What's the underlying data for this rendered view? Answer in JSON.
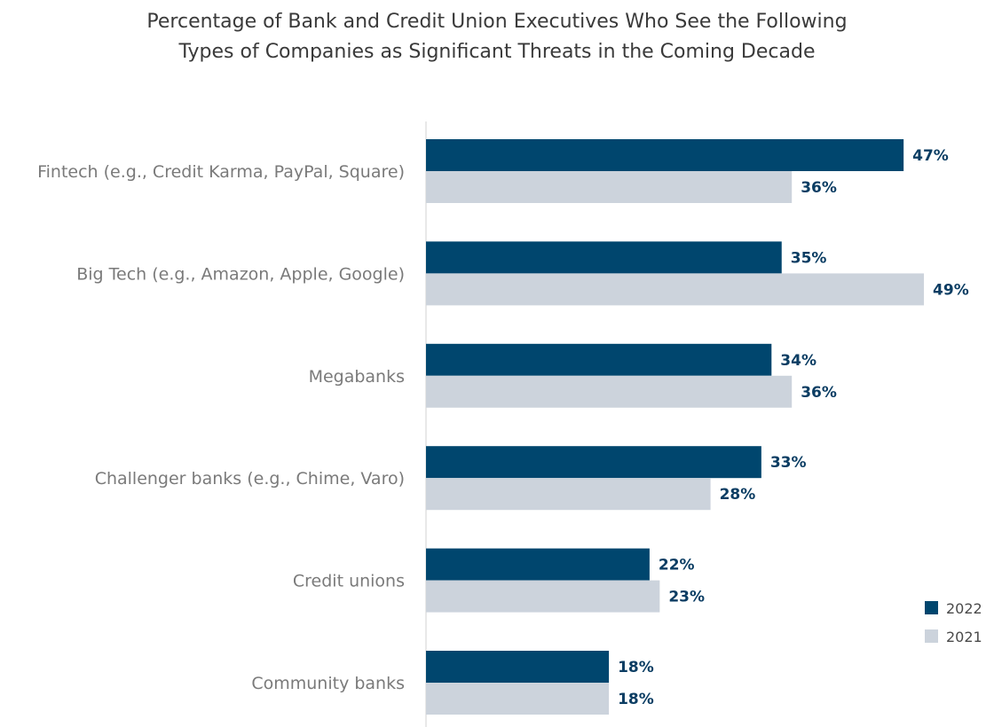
{
  "chart_data": {
    "type": "bar",
    "orientation": "horizontal",
    "title_lines": [
      "Percentage of Bank and Credit Union Executives Who See the Following",
      "Types of Companies as Significant Threats in the Coming Decade"
    ],
    "categories": [
      "Fintech (e.g., Credit Karma, PayPal, Square)",
      "Big Tech (e.g., Amazon, Apple, Google)",
      "Megabanks",
      "Challenger banks (e.g., Chime, Varo)",
      "Credit unions",
      "Community banks"
    ],
    "series": [
      {
        "name": "2022",
        "color": "#00466e",
        "values": [
          47,
          35,
          34,
          33,
          22,
          18
        ]
      },
      {
        "name": "2021",
        "color": "#ccd3dc",
        "values": [
          36,
          49,
          36,
          28,
          23,
          18
        ]
      }
    ],
    "value_suffix": "%",
    "xlim": [
      0,
      50
    ],
    "grid": false,
    "legend_position": "right"
  }
}
